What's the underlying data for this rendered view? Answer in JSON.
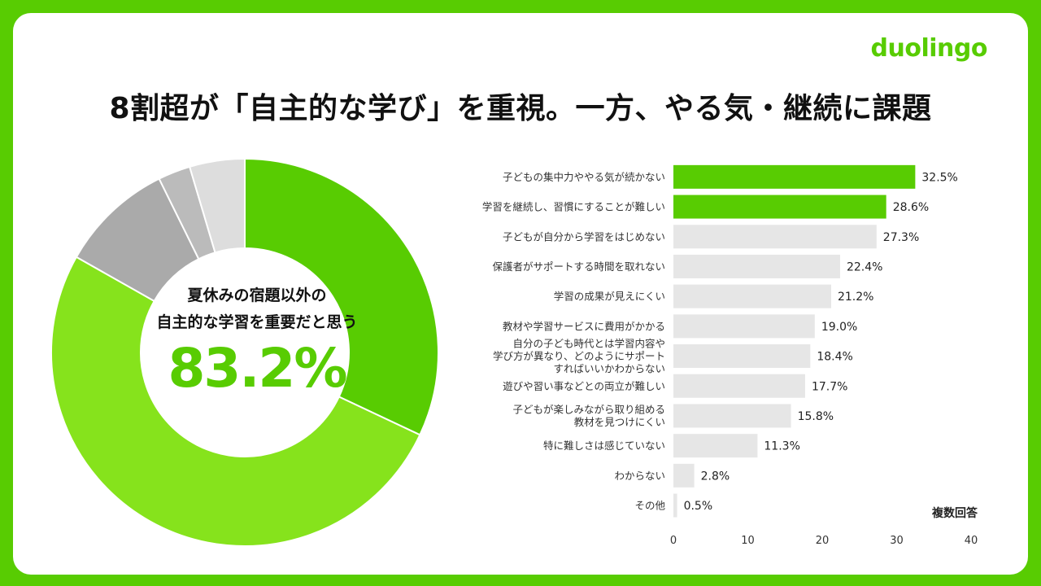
{
  "brand": {
    "logo_text": "duolingo"
  },
  "title": "8割超が「自主的な学び」を重視。一方、やる気・継続に課題",
  "colors": {
    "brand_green": "#58cc02",
    "highlight_green": "#58cc02",
    "light_green": "#86e31c",
    "gray_dark": "#aaaaaa",
    "gray_mid": "#bbbbbb",
    "gray_light": "#dddddd",
    "bar_gray": "#e6e6e6"
  },
  "chart_data": [
    {
      "type": "pie",
      "center_label_line1": "夏休みの宿題以外の",
      "center_label_line2": "自主的な学習を重要だと思う",
      "center_value": "83.2%",
      "slices": [
        {
          "value": 32.0,
          "color": "#58cc02"
        },
        {
          "value": 51.2,
          "color": "#86e31c"
        },
        {
          "value": 9.5,
          "color": "#aaaaaa"
        },
        {
          "value": 2.7,
          "color": "#bbbbbb"
        },
        {
          "value": 4.6,
          "color": "#dddddd"
        }
      ]
    },
    {
      "type": "bar",
      "orientation": "horizontal",
      "note": "複数回答",
      "xlim": [
        0,
        40
      ],
      "xticks": [
        "0",
        "10",
        "20",
        "30",
        "40"
      ],
      "categories": [
        [
          "子どもの集中力ややる気が続かない"
        ],
        [
          "学習を継続し、習慣にすることが難しい"
        ],
        [
          "子どもが自分から学習をはじめない"
        ],
        [
          "保護者がサポートする時間を取れない"
        ],
        [
          "学習の成果が見えにくい"
        ],
        [
          "教材や学習サービスに費用がかかる"
        ],
        [
          "自分の子ども時代とは学習内容や",
          "学び方が異なり、どのようにサポート",
          "すればいいかわからない"
        ],
        [
          "遊びや習い事などとの両立が難しい"
        ],
        [
          "子どもが楽しみながら取り組める",
          "教材を見つけにくい"
        ],
        [
          "特に難しさは感じていない"
        ],
        [
          "わからない"
        ],
        [
          "その他"
        ]
      ],
      "values": [
        32.5,
        28.6,
        27.3,
        22.4,
        21.2,
        19.0,
        18.4,
        17.7,
        15.8,
        11.3,
        2.8,
        0.5
      ],
      "value_labels": [
        "32.5%",
        "28.6%",
        "27.3%",
        "22.4%",
        "21.2%",
        "19.0%",
        "18.4%",
        "17.7%",
        "15.8%",
        "11.3%",
        "2.8%",
        "0.5%"
      ],
      "highlight_count": 2
    }
  ]
}
